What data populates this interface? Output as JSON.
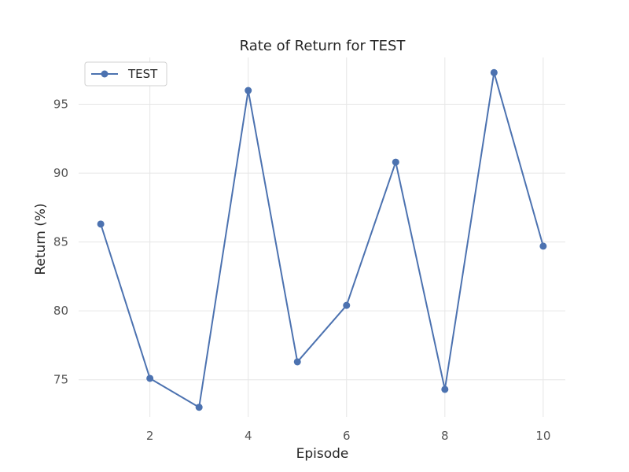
{
  "chart_data": {
    "type": "line",
    "title": "Rate of Return for TEST",
    "xlabel": "Episode",
    "ylabel": "Return (%)",
    "x": [
      1,
      2,
      3,
      4,
      5,
      6,
      7,
      8,
      9,
      10
    ],
    "series": [
      {
        "name": "TEST",
        "values": [
          86.3,
          75.1,
          73.0,
          96.0,
          76.3,
          80.4,
          90.8,
          74.3,
          97.3,
          84.7
        ],
        "color": "#4c72b0",
        "marker": "circle"
      }
    ],
    "xticks": [
      2,
      4,
      6,
      8,
      10
    ],
    "yticks": [
      75,
      80,
      85,
      90,
      95
    ],
    "xlim": [
      0.55,
      10.45
    ],
    "ylim": [
      72.3,
      98.4
    ],
    "grid": true,
    "legend_position": "top-left"
  }
}
